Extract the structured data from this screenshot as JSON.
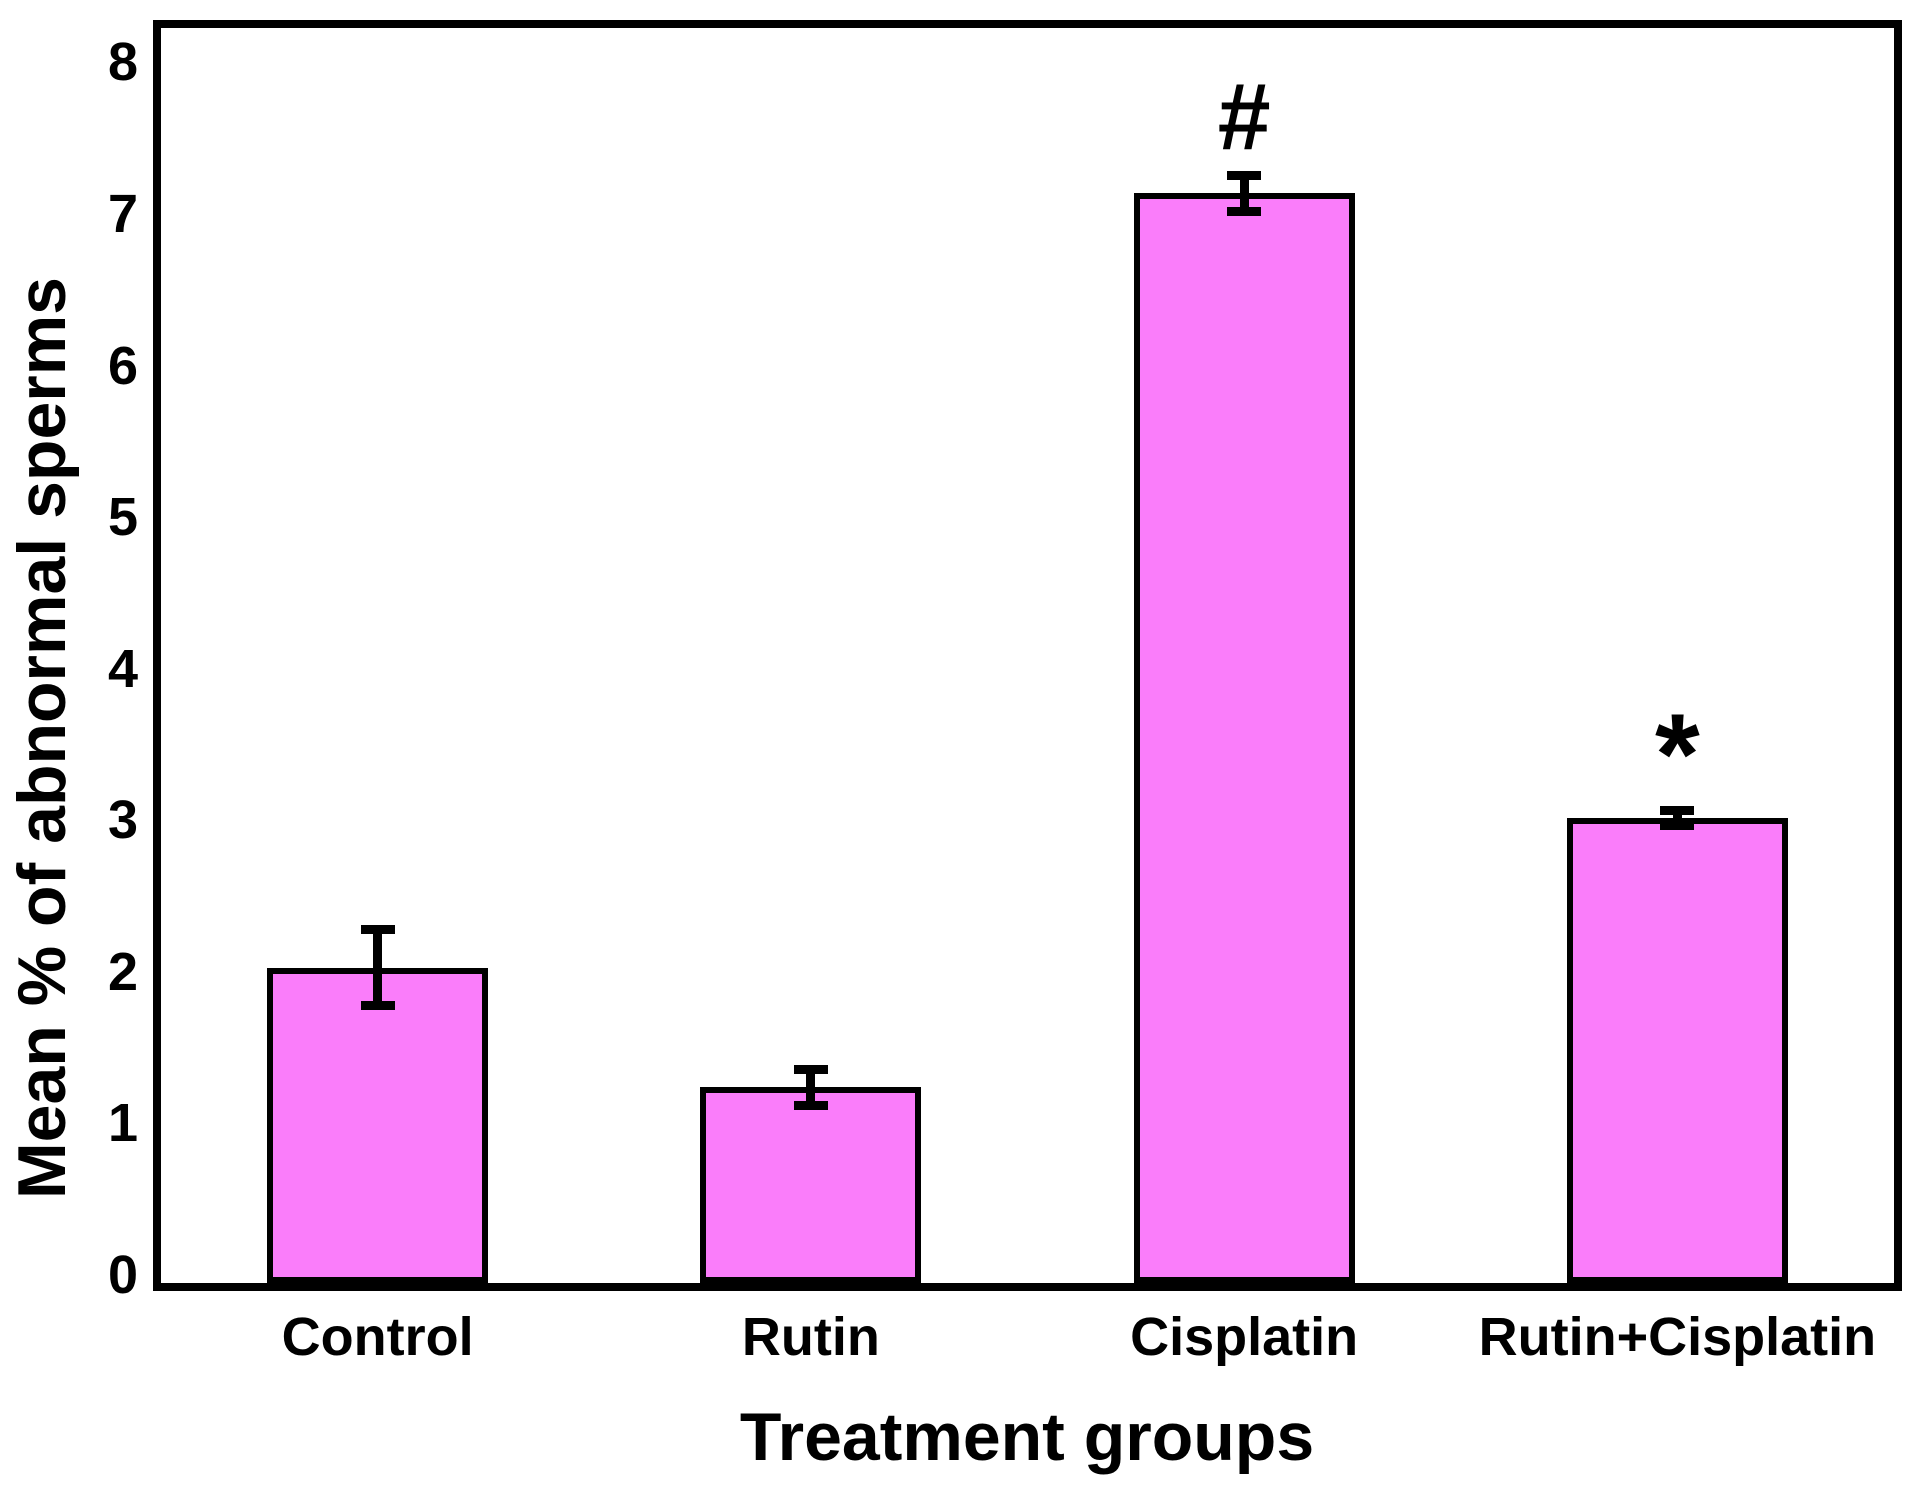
{
  "chart_data": {
    "type": "bar",
    "title": "",
    "xlabel": "Treatment groups",
    "ylabel": "Mean % of abnormal sperms",
    "categories": [
      "Control",
      "Rutin",
      "Cisplatin",
      "Rutin+Cisplatin"
    ],
    "values": [
      2.08,
      1.29,
      7.19,
      3.07
    ],
    "errors": [
      0.25,
      0.12,
      0.12,
      0.05
    ],
    "annotations": [
      "",
      "",
      "#",
      "*"
    ],
    "yticks": [
      0,
      1,
      2,
      3,
      4,
      5,
      6,
      7,
      8
    ],
    "ylim": [
      0,
      8.28
    ],
    "grid": false,
    "legend": null,
    "bar_fill_color": "#FA7DFA",
    "bar_border_color": "#000000",
    "axis_color": "#000000",
    "error_bar_color": "#000000"
  }
}
